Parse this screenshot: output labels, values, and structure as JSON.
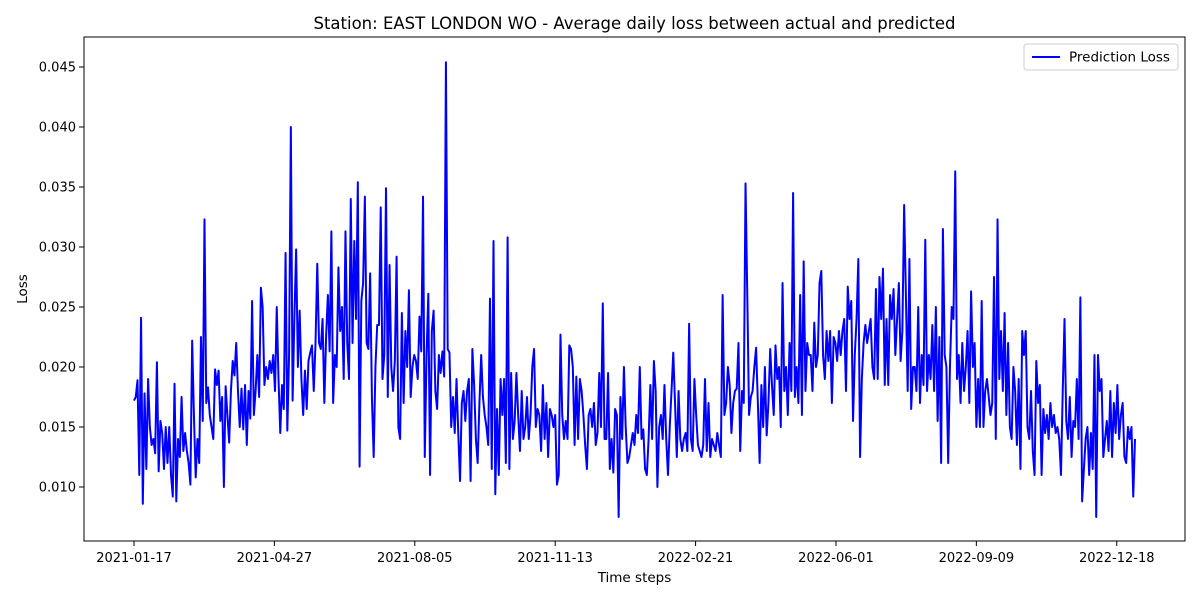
{
  "chart_data": {
    "type": "line",
    "title": "Station: EAST LONDON WO - Average daily loss between actual and predicted",
    "xlabel": "Time steps",
    "ylabel": "Loss",
    "x_start": "2021-01-17",
    "x_end": "2022-12-31",
    "x_ticks": [
      "2021-01-17",
      "2021-04-27",
      "2021-08-05",
      "2021-11-13",
      "2022-02-21",
      "2022-06-01",
      "2022-09-09",
      "2022-12-18"
    ],
    "ylim": [
      0.0055,
      0.0475
    ],
    "y_ticks": [
      0.01,
      0.015,
      0.02,
      0.025,
      0.03,
      0.035,
      0.04,
      0.045
    ],
    "grid": false,
    "legend": "top-right",
    "series": [
      {
        "name": "Prediction Loss",
        "color": "#0000ff",
        "values": [
          0.0172,
          0.0175,
          0.0189,
          0.011,
          0.0241,
          0.0086,
          0.0178,
          0.0115,
          0.019,
          0.015,
          0.0135,
          0.014,
          0.0128,
          0.0204,
          0.0113,
          0.0155,
          0.0145,
          0.0115,
          0.015,
          0.012,
          0.015,
          0.011,
          0.0092,
          0.0186,
          0.0088,
          0.014,
          0.0125,
          0.0175,
          0.013,
          0.0145,
          0.013,
          0.012,
          0.0102,
          0.0222,
          0.016,
          0.0108,
          0.014,
          0.012,
          0.0225,
          0.0155,
          0.0323,
          0.017,
          0.0183,
          0.016,
          0.015,
          0.014,
          0.0198,
          0.0185,
          0.0197,
          0.0155,
          0.0175,
          0.01,
          0.0184,
          0.016,
          0.0137,
          0.018,
          0.0205,
          0.0193,
          0.022,
          0.018,
          0.015,
          0.0182,
          0.0148,
          0.0185,
          0.0135,
          0.018,
          0.0157,
          0.0255,
          0.016,
          0.018,
          0.021,
          0.0175,
          0.0266,
          0.025,
          0.0185,
          0.02,
          0.019,
          0.0205,
          0.0195,
          0.021,
          0.018,
          0.025,
          0.019,
          0.0145,
          0.0185,
          0.0165,
          0.0295,
          0.0147,
          0.021,
          0.04,
          0.0172,
          0.024,
          0.0298,
          0.02,
          0.0247,
          0.019,
          0.016,
          0.0197,
          0.0165,
          0.0205,
          0.0212,
          0.0218,
          0.018,
          0.022,
          0.0286,
          0.022,
          0.0215,
          0.024,
          0.017,
          0.0225,
          0.026,
          0.0213,
          0.0313,
          0.017,
          0.021,
          0.02,
          0.0283,
          0.023,
          0.025,
          0.019,
          0.0313,
          0.022,
          0.019,
          0.034,
          0.022,
          0.0305,
          0.024,
          0.0354,
          0.0117,
          0.0255,
          0.027,
          0.0342,
          0.022,
          0.0215,
          0.0278,
          0.0175,
          0.0125,
          0.02,
          0.0235,
          0.0235,
          0.0333,
          0.019,
          0.021,
          0.0349,
          0.0175,
          0.0285,
          0.02,
          0.018,
          0.0205,
          0.0292,
          0.015,
          0.014,
          0.0245,
          0.017,
          0.023,
          0.02,
          0.0264,
          0.0175,
          0.02,
          0.021,
          0.0205,
          0.019,
          0.0242,
          0.0213,
          0.0342,
          0.0125,
          0.021,
          0.0261,
          0.011,
          0.023,
          0.0247,
          0.018,
          0.0165,
          0.021,
          0.0195,
          0.0213,
          0.0192,
          0.0454,
          0.0215,
          0.0212,
          0.015,
          0.0175,
          0.0145,
          0.019,
          0.0145,
          0.0105,
          0.017,
          0.018,
          0.0155,
          0.018,
          0.019,
          0.0105,
          0.0215,
          0.0185,
          0.014,
          0.012,
          0.017,
          0.021,
          0.0175,
          0.016,
          0.015,
          0.0135,
          0.0257,
          0.0115,
          0.0305,
          0.0094,
          0.0165,
          0.011,
          0.019,
          0.016,
          0.019,
          0.012,
          0.0308,
          0.0115,
          0.0195,
          0.014,
          0.0155,
          0.0195,
          0.016,
          0.013,
          0.018,
          0.014,
          0.015,
          0.0175,
          0.014,
          0.016,
          0.02,
          0.0215,
          0.015,
          0.0165,
          0.016,
          0.013,
          0.0185,
          0.014,
          0.017,
          0.0125,
          0.0165,
          0.016,
          0.015,
          0.016,
          0.0102,
          0.011,
          0.0227,
          0.016,
          0.014,
          0.0155,
          0.014,
          0.0218,
          0.0215,
          0.02,
          0.0135,
          0.0192,
          0.014,
          0.019,
          0.018,
          0.016,
          0.0135,
          0.0115,
          0.016,
          0.0165,
          0.015,
          0.017,
          0.0135,
          0.0145,
          0.0195,
          0.015,
          0.0253,
          0.014,
          0.014,
          0.0195,
          0.0115,
          0.014,
          0.0112,
          0.0165,
          0.016,
          0.0075,
          0.0175,
          0.014,
          0.02,
          0.015,
          0.012,
          0.0125,
          0.0135,
          0.0145,
          0.0135,
          0.016,
          0.0145,
          0.02,
          0.014,
          0.0148,
          0.0115,
          0.011,
          0.014,
          0.0185,
          0.014,
          0.0205,
          0.018,
          0.01,
          0.015,
          0.016,
          0.014,
          0.0185,
          0.014,
          0.011,
          0.015,
          0.018,
          0.0212,
          0.017,
          0.0125,
          0.018,
          0.014,
          0.013,
          0.014,
          0.0145,
          0.013,
          0.0236,
          0.014,
          0.013,
          0.019,
          0.016,
          0.0135,
          0.013,
          0.0125,
          0.0135,
          0.019,
          0.013,
          0.017,
          0.0125,
          0.014,
          0.0135,
          0.013,
          0.0145,
          0.0135,
          0.0125,
          0.026,
          0.016,
          0.017,
          0.02,
          0.0185,
          0.0145,
          0.017,
          0.018,
          0.0182,
          0.022,
          0.013,
          0.018,
          0.017,
          0.0353,
          0.026,
          0.016,
          0.0175,
          0.018,
          0.02,
          0.0216,
          0.017,
          0.012,
          0.0185,
          0.015,
          0.02,
          0.0143,
          0.017,
          0.0215,
          0.0185,
          0.016,
          0.0218,
          0.019,
          0.02,
          0.015,
          0.027,
          0.018,
          0.02,
          0.016,
          0.022,
          0.018,
          0.0345,
          0.0175,
          0.02,
          0.017,
          0.026,
          0.016,
          0.0288,
          0.018,
          0.022,
          0.021,
          0.021,
          0.018,
          0.0237,
          0.02,
          0.021,
          0.027,
          0.028,
          0.021,
          0.019,
          0.023,
          0.0205,
          0.023,
          0.017,
          0.0225,
          0.022,
          0.0205,
          0.023,
          0.021,
          0.023,
          0.024,
          0.018,
          0.0267,
          0.024,
          0.0255,
          0.0155,
          0.021,
          0.024,
          0.029,
          0.0125,
          0.019,
          0.022,
          0.0235,
          0.022,
          0.023,
          0.024,
          0.02,
          0.019,
          0.0265,
          0.019,
          0.0275,
          0.024,
          0.0282,
          0.0185,
          0.024,
          0.0185,
          0.026,
          0.024,
          0.0265,
          0.021,
          0.024,
          0.027,
          0.0205,
          0.023,
          0.0335,
          0.026,
          0.018,
          0.029,
          0.0165,
          0.02,
          0.02,
          0.018,
          0.025,
          0.017,
          0.021,
          0.0185,
          0.0306,
          0.018,
          0.021,
          0.019,
          0.0235,
          0.018,
          0.025,
          0.0155,
          0.0225,
          0.012,
          0.0315,
          0.021,
          0.02,
          0.012,
          0.02,
          0.025,
          0.024,
          0.0363,
          0.019,
          0.021,
          0.017,
          0.022,
          0.018,
          0.02,
          0.023,
          0.017,
          0.0263,
          0.02,
          0.022,
          0.015,
          0.019,
          0.015,
          0.0255,
          0.015,
          0.018,
          0.019,
          0.0175,
          0.016,
          0.017,
          0.0275,
          0.014,
          0.0323,
          0.019,
          0.023,
          0.018,
          0.0245,
          0.016,
          0.022,
          0.015,
          0.014,
          0.02,
          0.018,
          0.0135,
          0.019,
          0.0115,
          0.023,
          0.021,
          0.023,
          0.015,
          0.014,
          0.018,
          0.013,
          0.011,
          0.0205,
          0.017,
          0.0185,
          0.011,
          0.0165,
          0.0145,
          0.016,
          0.014,
          0.017,
          0.015,
          0.016,
          0.0145,
          0.015,
          0.014,
          0.011,
          0.018,
          0.024,
          0.0155,
          0.014,
          0.0175,
          0.0125,
          0.0155,
          0.015,
          0.019,
          0.014,
          0.0258,
          0.0088,
          0.0115,
          0.014,
          0.015,
          0.011,
          0.0145,
          0.0115,
          0.021,
          0.0075,
          0.021,
          0.018,
          0.019,
          0.0125,
          0.014,
          0.0155,
          0.013,
          0.018,
          0.0125,
          0.017,
          0.0145,
          0.0185,
          0.014,
          0.016,
          0.017,
          0.0125,
          0.012,
          0.015,
          0.014,
          0.015,
          0.0092,
          0.014
        ]
      }
    ]
  }
}
